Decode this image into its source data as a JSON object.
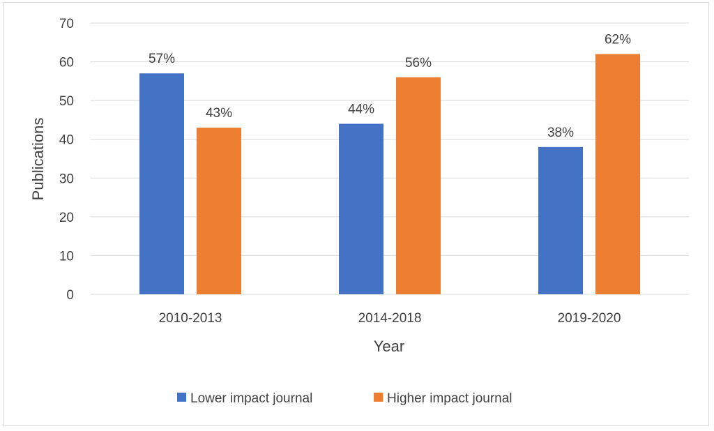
{
  "chart_data": {
    "type": "bar",
    "title": "",
    "xlabel": "Year",
    "ylabel": "Publications",
    "categories": [
      "2010-2013",
      "2014-2018",
      "2019-2020"
    ],
    "ylim": [
      0,
      70
    ],
    "yticks": [
      0,
      10,
      20,
      30,
      40,
      50,
      60,
      70
    ],
    "grid": true,
    "legend_position": "bottom",
    "series": [
      {
        "name": "Lower impact journal",
        "color": "#4472C4",
        "values": [
          57,
          44,
          38
        ],
        "labels": [
          "57%",
          "44%",
          "38%"
        ]
      },
      {
        "name": "Higher impact journal",
        "color": "#ED7D31",
        "values": [
          43,
          56,
          62
        ],
        "labels": [
          "43%",
          "56%",
          "62%"
        ]
      }
    ]
  }
}
